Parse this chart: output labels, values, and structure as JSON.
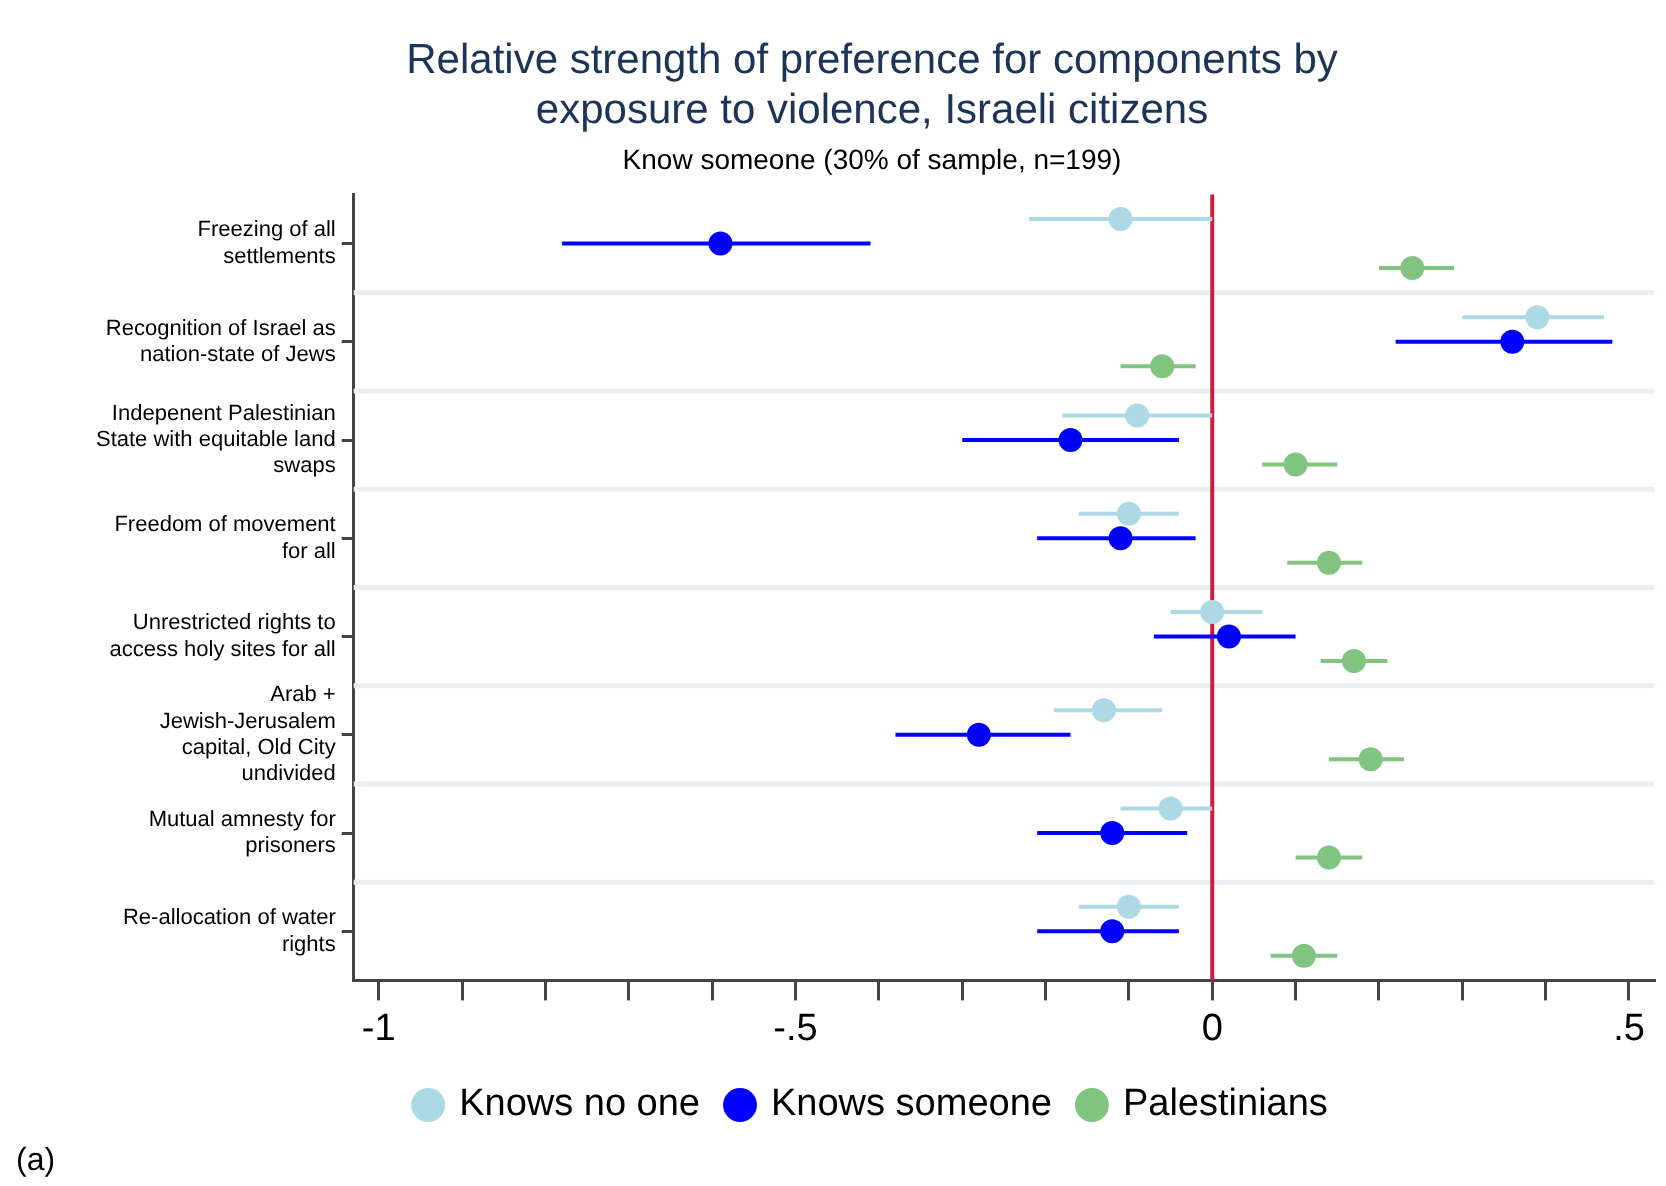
{
  "chart_data": {
    "type": "scatter",
    "orientation": "horizontal",
    "title": "Relative strength of preference for components by exposure to violence, Israeli citizens",
    "subtitle": "Know someone (30% of sample, n=199)",
    "annotations": [
      "(a)"
    ],
    "categories": [
      "Freezing of all settlements",
      "Recognition of Israel as nation-state of Jews",
      "Indepenent Palestinian State with equitable land swaps",
      "Freedom of movement for all",
      "Unrestricted rights to access holy sites for all",
      "Arab + Jewish-Jerusalem capital, Old City undivided",
      "Mutual amnesty for prisoners",
      "Re-allocation of water rights"
    ],
    "series": [
      {
        "name": "Knows no one",
        "color": "#add8e6",
        "values": [
          -0.11,
          0.39,
          -0.09,
          -0.1,
          0.0,
          -0.13,
          -0.05,
          -0.1
        ],
        "errors": [
          [
            -0.22,
            0.0
          ],
          [
            0.3,
            0.47
          ],
          [
            -0.18,
            0.0
          ],
          [
            -0.16,
            -0.04
          ],
          [
            -0.05,
            0.06
          ],
          [
            -0.19,
            -0.06
          ],
          [
            -0.11,
            0.0
          ],
          [
            -0.16,
            -0.04
          ]
        ]
      },
      {
        "name": "Knows someone",
        "color": "#0000ff",
        "values": [
          -0.59,
          0.36,
          -0.17,
          -0.11,
          0.02,
          -0.28,
          -0.12,
          -0.12
        ],
        "errors": [
          [
            -0.78,
            -0.41
          ],
          [
            0.22,
            0.48
          ],
          [
            -0.3,
            -0.04
          ],
          [
            -0.21,
            -0.02
          ],
          [
            -0.07,
            0.1
          ],
          [
            -0.38,
            -0.17
          ],
          [
            -0.21,
            -0.03
          ],
          [
            -0.21,
            -0.04
          ]
        ]
      },
      {
        "name": "Palestinians",
        "color": "#80c480",
        "values": [
          0.24,
          -0.06,
          0.1,
          0.14,
          0.17,
          0.19,
          0.14,
          0.11
        ],
        "errors": [
          [
            0.2,
            0.29
          ],
          [
            -0.11,
            -0.02
          ],
          [
            0.06,
            0.15
          ],
          [
            0.09,
            0.18
          ],
          [
            0.13,
            0.21
          ],
          [
            0.14,
            0.23
          ],
          [
            0.1,
            0.18
          ],
          [
            0.07,
            0.15
          ]
        ]
      }
    ],
    "xlim": [
      -1.03,
      0.53
    ],
    "xticks": [
      -1,
      {
        "value": -0.9,
        "label": null
      },
      {
        "value": -0.8,
        "label": null
      },
      {
        "value": -0.7,
        "label": null
      },
      {
        "value": -0.6,
        "label": null
      },
      {
        "value": -0.5,
        "label": "-.5"
      },
      {
        "value": -0.4,
        "label": null
      },
      {
        "value": -0.3,
        "label": null
      },
      {
        "value": -0.2,
        "label": null
      },
      {
        "value": -0.1,
        "label": null
      },
      0,
      {
        "value": 0.1,
        "label": null
      },
      {
        "value": 0.2,
        "label": null
      },
      {
        "value": 0.3,
        "label": null
      },
      {
        "value": 0.4,
        "label": null
      },
      {
        "value": 0.5,
        "label": ".5"
      }
    ],
    "ref_lines": [
      {
        "axis": "x",
        "value": 0,
        "color": "#c8203c"
      }
    ],
    "grid": "y",
    "legend": "bottom",
    "marker": "circle"
  }
}
